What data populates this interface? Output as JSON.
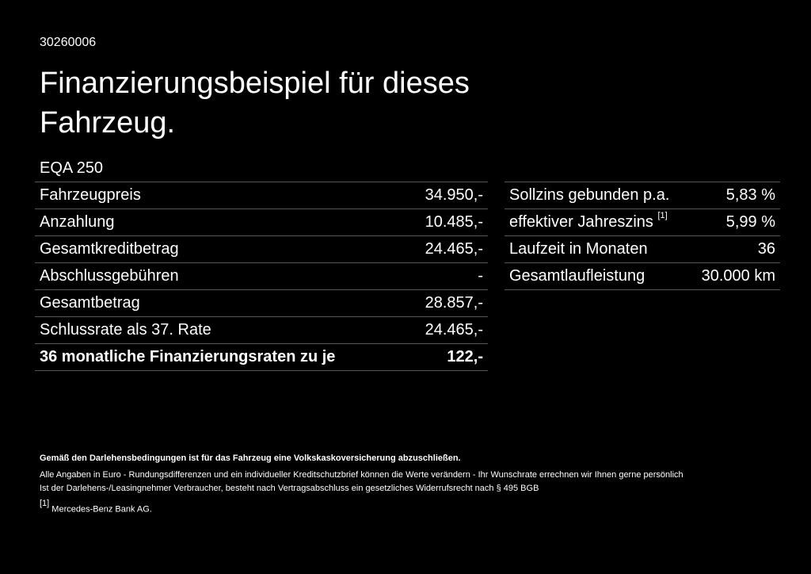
{
  "header": {
    "code": "30260006",
    "title": "Finanzierungsbeispiel für dieses Fahrzeug.",
    "model": "EQA 250"
  },
  "left_table": {
    "rows": [
      {
        "label": "Fahrzeugpreis",
        "value": "34.950,-"
      },
      {
        "label": "Anzahlung",
        "value": "10.485,-"
      },
      {
        "label": "Gesamtkreditbetrag",
        "value": "24.465,-"
      },
      {
        "label": "Abschlussgebühren",
        "value": "-"
      },
      {
        "label": "Gesamtbetrag",
        "value": "28.857,-"
      },
      {
        "label": "Schlussrate als 37. Rate",
        "value": "24.465,-"
      },
      {
        "label": "36 monatliche Finanzierungsraten zu je",
        "value": "122,-"
      }
    ]
  },
  "right_table": {
    "rows": [
      {
        "label": "Sollzins gebunden p.a.",
        "value": "5,83 %"
      },
      {
        "label": "effektiver Jahreszins",
        "footnote_ref": "[1]",
        "value": "5,99 %"
      },
      {
        "label": "Laufzeit in Monaten",
        "value": "36"
      },
      {
        "label": "Gesamtlaufleistung",
        "value": "30.000 km"
      }
    ]
  },
  "notes": {
    "bold": "Gemäß den Darlehensbedingungen ist für das Fahrzeug eine Volkskaskoversicherung abzuschließen.",
    "lines": [
      "Alle Angaben in Euro - Rundungsdifferenzen und ein individueller Kreditschutzbrief können die Werte verändern - Ihr Wunschrate errechnen wir Ihnen gerne persönlich",
      "Ist der Darlehens-/Leasingnehmer Verbraucher, besteht nach Vertragsabschluss ein gesetzliches Widerrufsrecht nach § 495 BGB"
    ],
    "footnotes": [
      {
        "ref": "[1]",
        "text": "Mercedes-Benz Bank AG."
      }
    ]
  }
}
